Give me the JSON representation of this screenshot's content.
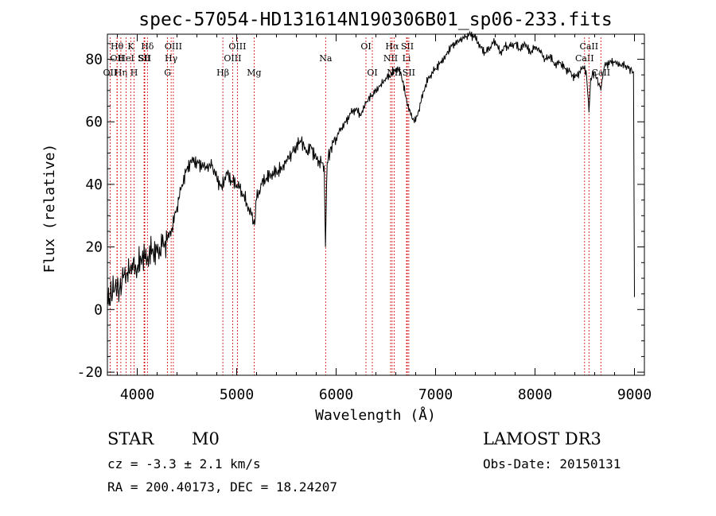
{
  "chart_data": {
    "type": "line",
    "title": "spec-57054-HD131614N190306B01_sp06-233.fits",
    "xlabel": "Wavelength (Å)",
    "ylabel": "Flux (relative)",
    "xlim": [
      3700,
      9100
    ],
    "ylim": [
      -21,
      88
    ],
    "x_ticks": [
      4000,
      5000,
      6000,
      7000,
      8000,
      9000
    ],
    "y_ticks": [
      -20,
      0,
      20,
      40,
      60,
      80
    ],
    "grid": false,
    "series": [
      {
        "name": "spectrum",
        "x": [
          3700,
          3740,
          3780,
          3820,
          3860,
          3900,
          3950,
          4000,
          4050,
          4100,
          4150,
          4200,
          4250,
          4300,
          4350,
          4400,
          4450,
          4500,
          4550,
          4600,
          4650,
          4700,
          4750,
          4800,
          4850,
          4900,
          4950,
          5000,
          5050,
          5100,
          5150,
          5180,
          5200,
          5250,
          5300,
          5350,
          5400,
          5450,
          5500,
          5550,
          5600,
          5650,
          5700,
          5750,
          5800,
          5850,
          5880,
          5893,
          5910,
          5950,
          6000,
          6050,
          6100,
          6150,
          6200,
          6250,
          6300,
          6350,
          6400,
          6450,
          6500,
          6550,
          6600,
          6650,
          6700,
          6750,
          6800,
          6850,
          6900,
          6950,
          7000,
          7050,
          7100,
          7150,
          7200,
          7250,
          7300,
          7350,
          7400,
          7450,
          7500,
          7550,
          7600,
          7650,
          7700,
          7750,
          7800,
          7850,
          7900,
          7950,
          8000,
          8050,
          8100,
          8150,
          8200,
          8250,
          8300,
          8350,
          8400,
          8450,
          8500,
          8520,
          8542,
          8560,
          8600,
          8640,
          8662,
          8680,
          8700,
          8750,
          8800,
          8850,
          8900,
          8950,
          8990,
          9000
        ],
        "values": [
          2,
          5,
          8,
          6,
          10,
          12,
          15,
          13,
          17,
          16,
          19,
          18,
          20,
          22,
          26,
          33,
          40,
          45,
          48,
          47,
          46,
          45,
          46,
          42,
          39,
          44,
          41,
          40,
          38,
          34,
          30,
          27,
          35,
          40,
          42,
          43,
          44,
          45,
          48,
          50,
          52,
          54,
          50,
          52,
          48,
          47,
          46,
          20,
          47,
          52,
          55,
          58,
          60,
          63,
          64,
          62,
          66,
          68,
          70,
          72,
          74,
          75,
          77,
          76,
          68,
          62,
          60,
          66,
          72,
          75,
          77,
          79,
          81,
          84,
          85,
          86,
          87,
          88,
          87,
          84,
          82,
          84,
          86,
          82,
          84,
          84,
          85,
          83,
          85,
          82,
          84,
          83,
          80,
          81,
          78,
          79,
          77,
          76,
          74,
          76,
          78,
          74,
          63,
          74,
          76,
          72,
          70,
          74,
          78,
          79,
          79,
          78,
          78,
          77,
          76,
          4
        ]
      }
    ],
    "line_markers": [
      {
        "label": "OII",
        "x": 3727,
        "row": 3
      },
      {
        "label": "Hθ",
        "x": 3797,
        "row": 1
      },
      {
        "label": "OII",
        "x": 3798,
        "row": 2
      },
      {
        "label": "Hη",
        "x": 3835,
        "row": 3
      },
      {
        "label": "HeI",
        "x": 3889,
        "row": 2
      },
      {
        "label": "K",
        "x": 3934,
        "row": 1
      },
      {
        "label": "H",
        "x": 3969,
        "row": 3
      },
      {
        "label": "SII",
        "x": 4069,
        "row": 2
      },
      {
        "label": "Hδ",
        "x": 4102,
        "row": 1
      },
      {
        "label": "SII",
        "x": 4076,
        "row": 2
      },
      {
        "label": "G",
        "x": 4305,
        "row": 3
      },
      {
        "label": "Hγ",
        "x": 4341,
        "row": 2
      },
      {
        "label": "OIII",
        "x": 4363,
        "row": 1
      },
      {
        "label": "Hβ",
        "x": 4861,
        "row": 3
      },
      {
        "label": "OIII",
        "x": 4959,
        "row": 2
      },
      {
        "label": "OIII",
        "x": 5007,
        "row": 1
      },
      {
        "label": "Mg",
        "x": 5175,
        "row": 3
      },
      {
        "label": "Na",
        "x": 5894,
        "row": 2
      },
      {
        "label": "OI",
        "x": 6300,
        "row": 1
      },
      {
        "label": "OI",
        "x": 6364,
        "row": 3
      },
      {
        "label": "NII",
        "x": 6548,
        "row": 2
      },
      {
        "label": "Hα",
        "x": 6563,
        "row": 1
      },
      {
        "label": "NII",
        "x": 6583,
        "row": 3
      },
      {
        "label": "Li",
        "x": 6708,
        "row": 2
      },
      {
        "label": "SII",
        "x": 6716,
        "row": 1
      },
      {
        "label": "SII",
        "x": 6731,
        "row": 3
      },
      {
        "label": "CaII",
        "x": 8498,
        "row": 2
      },
      {
        "label": "CaII",
        "x": 8542,
        "row": 1
      },
      {
        "label": "CaII",
        "x": 8662,
        "row": 3
      }
    ]
  },
  "info": {
    "object_class": "STAR",
    "subclass": "M0",
    "cz": "cz = -3.3 ± 2.1 km/s",
    "coords": "RA = 200.40173, DEC =  18.24207",
    "survey": "LAMOST DR3",
    "obs_date": "Obs-Date: 20150131"
  },
  "colors": {
    "line_marker": "#cc0000",
    "spectrum": "#000000",
    "axes": "#000000"
  }
}
